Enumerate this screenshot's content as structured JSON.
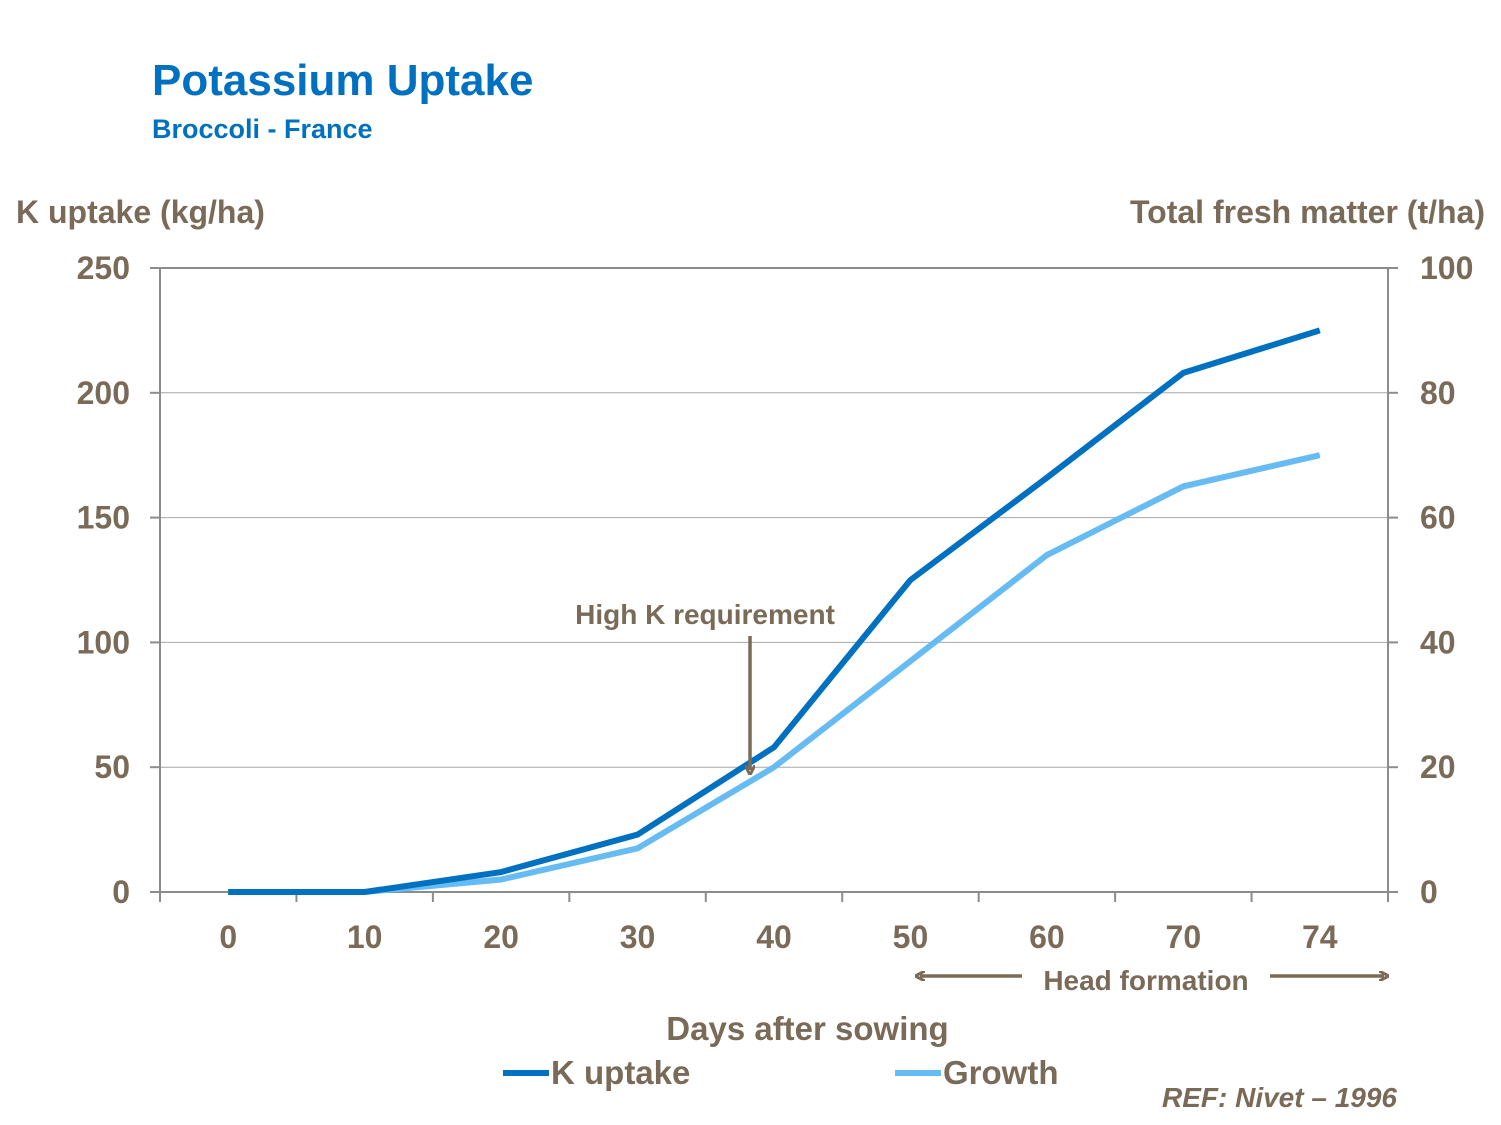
{
  "header": {
    "title": "Potassium Uptake",
    "subtitle": "Broccoli  - France"
  },
  "axes": {
    "y_left_title": "K uptake (kg/ha)",
    "y_right_title": "Total fresh matter (t/ha)",
    "x_title": "Days after sowing"
  },
  "legend": {
    "k_uptake_label": "K uptake",
    "growth_label": "Growth"
  },
  "annotations": {
    "high_k": "High K requirement",
    "head_formation": "Head formation"
  },
  "reference": "REF: Nivet – 1996",
  "colors": {
    "k_uptake": "#0070C0",
    "growth": "#66BBF2",
    "text": "#7A6A58",
    "title": "#0070C0"
  },
  "chart_data": {
    "type": "line",
    "title": "Potassium Uptake",
    "subtitle": "Broccoli  - France",
    "xlabel": "Days after sowing",
    "categories": [
      "0",
      "10",
      "20",
      "30",
      "40",
      "50",
      "60",
      "70",
      "74"
    ],
    "ylabel_left": "K uptake (kg/ha)",
    "ylabel_right": "Total fresh matter (t/ha)",
    "ylim_left": [
      0,
      250
    ],
    "ylim_right": [
      0,
      100
    ],
    "yticks_left": [
      "0",
      "50",
      "100",
      "150",
      "200",
      "250"
    ],
    "yticks_right": [
      "0",
      "20",
      "40",
      "60",
      "80",
      "100"
    ],
    "grid": true,
    "legend_position": "bottom",
    "series": [
      {
        "name": "K uptake",
        "axis": "left",
        "values": [
          0,
          0,
          8,
          23,
          58,
          125,
          166,
          208,
          225
        ]
      },
      {
        "name": "Growth",
        "axis": "right",
        "values": [
          0,
          0,
          2,
          7,
          20,
          37,
          54,
          65,
          70
        ]
      }
    ],
    "annotations": [
      {
        "text": "High K requirement",
        "points_to_x_days": 38.5
      },
      {
        "text": "Head formation",
        "spans": "50 to 74"
      }
    ]
  }
}
